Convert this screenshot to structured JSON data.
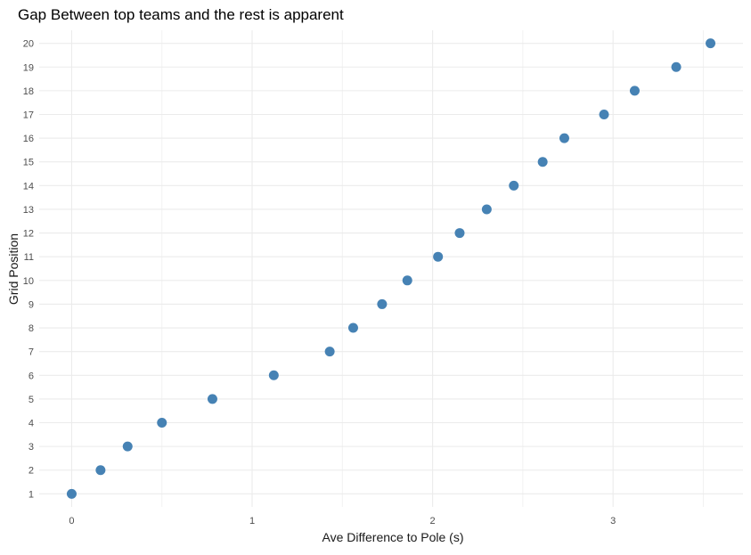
{
  "chart_data": {
    "type": "scatter",
    "title": "Gap Between top teams and the rest is apparent",
    "xlabel": "Ave Difference to Pole (s)",
    "ylabel": "Grid Position",
    "xlim": [
      -0.18,
      3.72
    ],
    "ylim": [
      0.45,
      20.55
    ],
    "x_ticks": [
      0,
      1,
      2,
      3
    ],
    "x_minor_ticks": [
      0.5,
      1.5,
      2.5,
      3.5
    ],
    "y_ticks": [
      1,
      2,
      3,
      4,
      5,
      6,
      7,
      8,
      9,
      10,
      11,
      12,
      13,
      14,
      15,
      16,
      17,
      18,
      19,
      20
    ],
    "grid": true,
    "legend": "none",
    "point_color": "#4682B4",
    "points": [
      {
        "x": 0.0,
        "y": 1
      },
      {
        "x": 0.16,
        "y": 2
      },
      {
        "x": 0.31,
        "y": 3
      },
      {
        "x": 0.5,
        "y": 4
      },
      {
        "x": 0.78,
        "y": 5
      },
      {
        "x": 1.12,
        "y": 6
      },
      {
        "x": 1.43,
        "y": 7
      },
      {
        "x": 1.56,
        "y": 8
      },
      {
        "x": 1.72,
        "y": 9
      },
      {
        "x": 1.86,
        "y": 10
      },
      {
        "x": 2.03,
        "y": 11
      },
      {
        "x": 2.15,
        "y": 12
      },
      {
        "x": 2.3,
        "y": 13
      },
      {
        "x": 2.45,
        "y": 14
      },
      {
        "x": 2.61,
        "y": 15
      },
      {
        "x": 2.73,
        "y": 16
      },
      {
        "x": 2.95,
        "y": 17
      },
      {
        "x": 3.12,
        "y": 18
      },
      {
        "x": 3.35,
        "y": 19
      },
      {
        "x": 3.54,
        "y": 20
      }
    ]
  }
}
